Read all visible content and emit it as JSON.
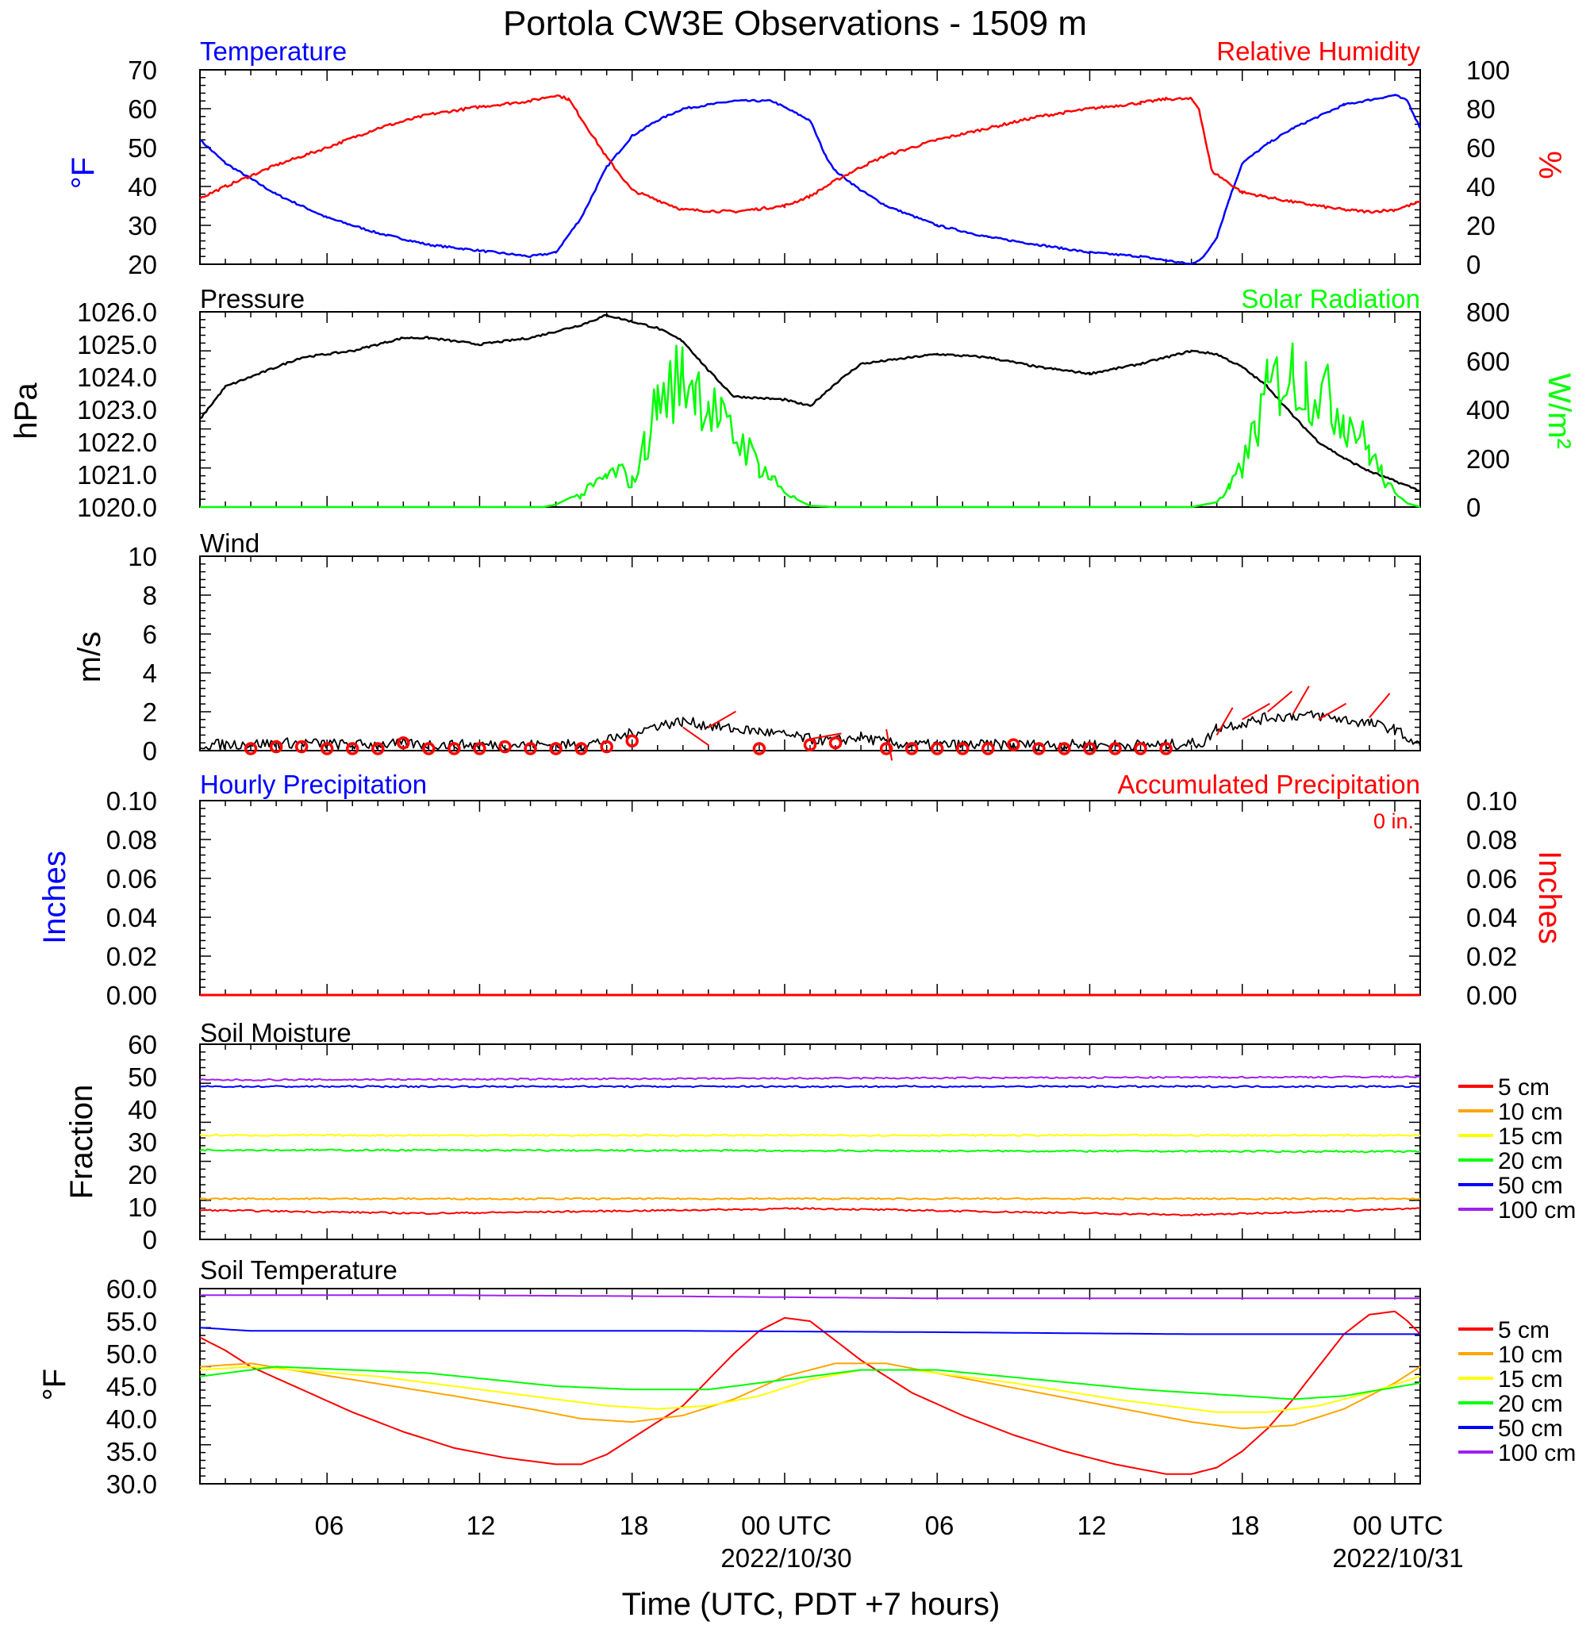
{
  "title": "Portola CW3E Observations - 1509 m",
  "x_axis": {
    "label": "Time (UTC, PDT +7 hours)",
    "tick_labels": [
      "06",
      "12",
      "18",
      "00 UTC",
      "06",
      "12",
      "18",
      "00 UTC"
    ],
    "date_labels": [
      "2022/10/30",
      "2022/10/31"
    ],
    "range_hours": [
      1,
      49
    ]
  },
  "colors": {
    "temperature": "#0000ff",
    "humidity": "#ff0000",
    "pressure": "#000000",
    "solar": "#00ff00",
    "precip_hourly": "#0000ff",
    "precip_accum": "#ff0000",
    "depth_5": "#ff0000",
    "depth_10": "#ffa500",
    "depth_15": "#ffff00",
    "depth_20": "#00ff00",
    "depth_50": "#0000ff",
    "depth_100": "#a020f0"
  },
  "panels": {
    "temp_rh": {
      "left_title": "Temperature",
      "right_title": "Relative Humidity",
      "left_unit": "°F",
      "right_unit": "%",
      "left_ticks": [
        "70",
        "60",
        "50",
        "40",
        "30",
        "20"
      ],
      "right_ticks": [
        "100",
        "80",
        "60",
        "40",
        "20",
        "0"
      ]
    },
    "pressure_solar": {
      "left_title": "Pressure",
      "right_title": "Solar Radiation",
      "left_unit": "hPa",
      "right_unit": "W/m²",
      "left_ticks": [
        "1026.0",
        "1025.0",
        "1024.0",
        "1023.0",
        "1022.0",
        "1021.0",
        "1020.0"
      ],
      "right_ticks": [
        "800",
        "600",
        "400",
        "200",
        "0"
      ]
    },
    "wind": {
      "title": "Wind",
      "unit": "m/s",
      "ticks": [
        "10",
        "8",
        "6",
        "4",
        "2",
        "0"
      ]
    },
    "precip": {
      "left_title": "Hourly Precipitation",
      "right_title": "Accumulated Precipitation",
      "total_label": "0 in.",
      "left_unit": "Inches",
      "right_unit": "Inches",
      "ticks": [
        "0.10",
        "0.08",
        "0.06",
        "0.04",
        "0.02",
        "0.00"
      ]
    },
    "soil_moisture": {
      "title": "Soil Moisture",
      "unit": "Fraction",
      "ticks": [
        "60",
        "50",
        "40",
        "30",
        "20",
        "10",
        "0"
      ],
      "legend": [
        "5 cm",
        "10 cm",
        "15 cm",
        "20 cm",
        "50 cm",
        "100 cm"
      ]
    },
    "soil_temp": {
      "title": "Soil Temperature",
      "unit": "°F",
      "ticks": [
        "60.0",
        "55.0",
        "50.0",
        "45.0",
        "40.0",
        "35.0",
        "30.0"
      ],
      "legend": [
        "5 cm",
        "10 cm",
        "15 cm",
        "20 cm",
        "50 cm",
        "100 cm"
      ]
    }
  },
  "chart_data": [
    {
      "type": "line",
      "panel": "temp_rh",
      "x_units": "hours since 2022/10/29 00 UTC",
      "ylim_left": [
        20,
        70
      ],
      "ylim_right": [
        0,
        100
      ],
      "series": [
        {
          "name": "Temperature",
          "axis": "left",
          "x": [
            1,
            2,
            3,
            4,
            5,
            6,
            8,
            10,
            12,
            14,
            15,
            16,
            17,
            18,
            19,
            20,
            22,
            23.5,
            25,
            25.6,
            26,
            27,
            28,
            30,
            32,
            34,
            36,
            38,
            39,
            40,
            40.5,
            41,
            41.5,
            42,
            43,
            44,
            46,
            48,
            48.5,
            49
          ],
          "y": [
            52,
            46,
            42,
            38,
            35,
            32,
            28,
            25,
            23.5,
            22,
            23,
            32,
            45,
            53,
            57,
            60,
            62,
            62,
            57,
            48,
            44,
            39,
            35,
            30,
            27,
            25,
            23,
            22,
            21,
            20,
            22,
            27,
            37,
            46,
            51,
            55,
            61,
            63.5,
            62,
            55
          ]
        },
        {
          "name": "Relative Humidity",
          "axis": "right",
          "x": [
            1,
            2,
            4,
            6,
            8,
            10,
            12,
            14,
            15,
            15.5,
            16,
            17,
            18,
            19,
            20,
            22,
            24,
            25,
            26,
            27,
            28,
            30,
            32,
            34,
            36,
            38,
            39,
            40,
            40.3,
            40.8,
            42,
            44,
            46,
            47,
            48,
            49
          ],
          "y": [
            34,
            40,
            51,
            60,
            70,
            77,
            81,
            84,
            87,
            85,
            75,
            55,
            38,
            33,
            28,
            27,
            30,
            35,
            43,
            50,
            56,
            64,
            70,
            76,
            80,
            83,
            85,
            85,
            80,
            48,
            37,
            32,
            28,
            27,
            28,
            32
          ]
        }
      ]
    },
    {
      "type": "line",
      "panel": "pressure_solar",
      "x_units": "hours since 2022/10/29 00 UTC",
      "ylim_left": [
        1020.0,
        1026.0
      ],
      "ylim_right": [
        0,
        800
      ],
      "series": [
        {
          "name": "Pressure",
          "axis": "left",
          "x": [
            1,
            2,
            3,
            5,
            7,
            9,
            10,
            12,
            14,
            16,
            17,
            18,
            19,
            20,
            21,
            22,
            24,
            25,
            26,
            27,
            28,
            30,
            32,
            34,
            36,
            38,
            40,
            41,
            42,
            43,
            44,
            45,
            46,
            47,
            48,
            49
          ],
          "y": [
            1022.7,
            1023.7,
            1024.0,
            1024.6,
            1024.8,
            1025.2,
            1025.2,
            1025.0,
            1025.2,
            1025.6,
            1025.9,
            1025.7,
            1025.5,
            1025.1,
            1024.2,
            1023.4,
            1023.3,
            1023.1,
            1023.8,
            1024.4,
            1024.5,
            1024.7,
            1024.6,
            1024.3,
            1024.1,
            1024.4,
            1024.8,
            1024.7,
            1024.3,
            1023.7,
            1022.8,
            1022.0,
            1021.5,
            1021.1,
            1020.8,
            1020.5
          ]
        },
        {
          "name": "Solar Radiation",
          "axis": "right",
          "x": [
            1,
            14.5,
            15,
            16,
            17,
            17.5,
            18,
            18.5,
            19,
            19.5,
            20,
            20.5,
            21,
            21.5,
            22,
            22.5,
            23,
            23.5,
            24,
            24.5,
            25,
            26,
            40,
            41,
            41.5,
            42,
            42.5,
            43,
            43.5,
            44,
            44.5,
            45,
            45.5,
            46,
            46.5,
            47,
            47.5,
            48,
            48.5,
            49
          ],
          "y": [
            0,
            0,
            10,
            60,
            150,
            180,
            120,
            300,
            520,
            600,
            650,
            610,
            520,
            420,
            350,
            290,
            210,
            140,
            80,
            30,
            5,
            0,
            0,
            20,
            90,
            200,
            380,
            560,
            640,
            660,
            620,
            580,
            520,
            460,
            380,
            280,
            160,
            60,
            15,
            0
          ]
        }
      ]
    },
    {
      "type": "line",
      "panel": "wind",
      "x_units": "hours since 2022/10/29 00 UTC",
      "ylim": [
        0,
        10
      ],
      "series": [
        {
          "name": "Wind",
          "x": [
            1,
            3,
            5,
            7,
            9,
            11,
            13,
            15,
            16,
            17,
            18,
            19,
            20,
            21,
            22,
            23,
            24,
            25,
            26,
            27,
            28,
            29,
            31,
            33,
            35,
            37,
            39,
            40.5,
            41,
            42,
            43,
            44,
            45,
            46,
            47,
            48,
            49
          ],
          "y": [
            0.3,
            0.35,
            0.4,
            0.3,
            0.35,
            0.3,
            0.3,
            0.3,
            0.3,
            0.5,
            0.9,
            1.3,
            1.5,
            1.3,
            1.1,
            1.0,
            0.8,
            0.6,
            0.5,
            0.7,
            0.4,
            0.3,
            0.3,
            0.3,
            0.3,
            0.3,
            0.3,
            0.4,
            1.2,
            1.4,
            1.7,
            1.8,
            1.8,
            1.6,
            1.4,
            1.1,
            0.2
          ]
        },
        {
          "name": "Hourly wind markers",
          "x": [
            3,
            4,
            5,
            6,
            7,
            8,
            9,
            10,
            11,
            12,
            13,
            14,
            15,
            16,
            17,
            18,
            23,
            25,
            26,
            28,
            29,
            30,
            31,
            32,
            33,
            34,
            35,
            36,
            37,
            38,
            39
          ],
          "y": [
            0.1,
            0.2,
            0.2,
            0.1,
            0.1,
            0.1,
            0.4,
            0.1,
            0.1,
            0.1,
            0.2,
            0.1,
            0.1,
            0.1,
            0.2,
            0.5,
            0.1,
            0.3,
            0.4,
            0.1,
            0.1,
            0.1,
            0.1,
            0.1,
            0.3,
            0.1,
            0.1,
            0.1,
            0.1,
            0.1,
            0.1
          ]
        }
      ]
    },
    {
      "type": "line",
      "panel": "precip",
      "x_units": "hours since 2022/10/29 00 UTC",
      "ylim": [
        0,
        0.1
      ],
      "series": [
        {
          "name": "Hourly Precipitation",
          "x": [
            1,
            49
          ],
          "y": [
            0,
            0
          ]
        },
        {
          "name": "Accumulated Precipitation",
          "x": [
            1,
            49
          ],
          "y": [
            0,
            0
          ]
        }
      ]
    },
    {
      "type": "line",
      "panel": "soil_moisture",
      "x_units": "hours since 2022/10/29 00 UTC",
      "ylim": [
        0,
        60
      ],
      "series": [
        {
          "name": "5 cm",
          "x": [
            1,
            10,
            25,
            40,
            49
          ],
          "y": [
            9,
            8,
            9.5,
            7.5,
            9.5
          ]
        },
        {
          "name": "10 cm",
          "x": [
            1,
            49
          ],
          "y": [
            12.5,
            12.5
          ]
        },
        {
          "name": "15 cm",
          "x": [
            1,
            49
          ],
          "y": [
            32,
            32
          ]
        },
        {
          "name": "20 cm",
          "x": [
            1,
            49
          ],
          "y": [
            27.5,
            27
          ]
        },
        {
          "name": "50 cm",
          "x": [
            1,
            49
          ],
          "y": [
            47,
            47
          ]
        },
        {
          "name": "100 cm",
          "x": [
            1,
            49
          ],
          "y": [
            49,
            50
          ]
        }
      ]
    },
    {
      "type": "line",
      "panel": "soil_temp",
      "x_units": "hours since 2022/10/29 00 UTC",
      "ylim": [
        30.0,
        60.0
      ],
      "series": [
        {
          "name": "5 cm",
          "x": [
            1,
            2,
            3,
            5,
            7,
            9,
            11,
            13,
            15,
            16,
            17,
            18,
            19,
            20,
            21,
            22,
            23,
            24,
            25,
            26,
            27,
            29,
            31,
            33,
            35,
            37,
            39,
            40,
            41,
            42,
            43,
            44,
            45,
            46,
            47,
            48,
            48.5,
            49
          ],
          "y": [
            52.5,
            50.5,
            48,
            44.5,
            41,
            38,
            35.5,
            34,
            33,
            33,
            34.5,
            37,
            39.5,
            42,
            46,
            50,
            53.5,
            55.5,
            55,
            52,
            49,
            44,
            40.5,
            37.5,
            35,
            33,
            31.5,
            31.5,
            32.5,
            35,
            38.5,
            43,
            48,
            53,
            56,
            56.5,
            55,
            53
          ]
        },
        {
          "name": "10 cm",
          "x": [
            1,
            3,
            7,
            11,
            14,
            16,
            18,
            20,
            22,
            24,
            26,
            28,
            32,
            36,
            40,
            42,
            44,
            46,
            48,
            49
          ],
          "y": [
            48,
            48.5,
            46,
            43.5,
            41.5,
            40,
            39.5,
            40.5,
            43,
            46.5,
            48.5,
            48.5,
            45.5,
            42.5,
            39.5,
            38.5,
            39,
            41.5,
            45.5,
            48
          ]
        },
        {
          "name": "15 cm",
          "x": [
            1,
            3,
            8,
            13,
            17,
            19,
            21,
            23,
            25,
            27,
            29,
            33,
            37,
            41,
            43,
            45,
            47,
            49
          ],
          "y": [
            47.5,
            48,
            46.5,
            44,
            42,
            41.5,
            42,
            43.5,
            46,
            47.5,
            47.5,
            45.5,
            43,
            41,
            41,
            42,
            44,
            46.5
          ]
        },
        {
          "name": "20 cm",
          "x": [
            1,
            4,
            10,
            15,
            18,
            21,
            24,
            27,
            30,
            34,
            38,
            42,
            44,
            46,
            49
          ],
          "y": [
            46.5,
            48,
            47,
            45,
            44.5,
            44.5,
            46,
            47.5,
            47.5,
            46,
            44.5,
            43.5,
            43,
            43.5,
            45.5
          ]
        },
        {
          "name": "50 cm",
          "x": [
            1,
            3,
            10,
            20,
            30,
            40,
            49
          ],
          "y": [
            54,
            53.5,
            53.5,
            53.5,
            53.3,
            53,
            53
          ]
        },
        {
          "name": "100 cm",
          "x": [
            1,
            10,
            20,
            30,
            40,
            49
          ],
          "y": [
            59,
            59,
            58.8,
            58.5,
            58.5,
            58.5
          ]
        }
      ]
    }
  ]
}
